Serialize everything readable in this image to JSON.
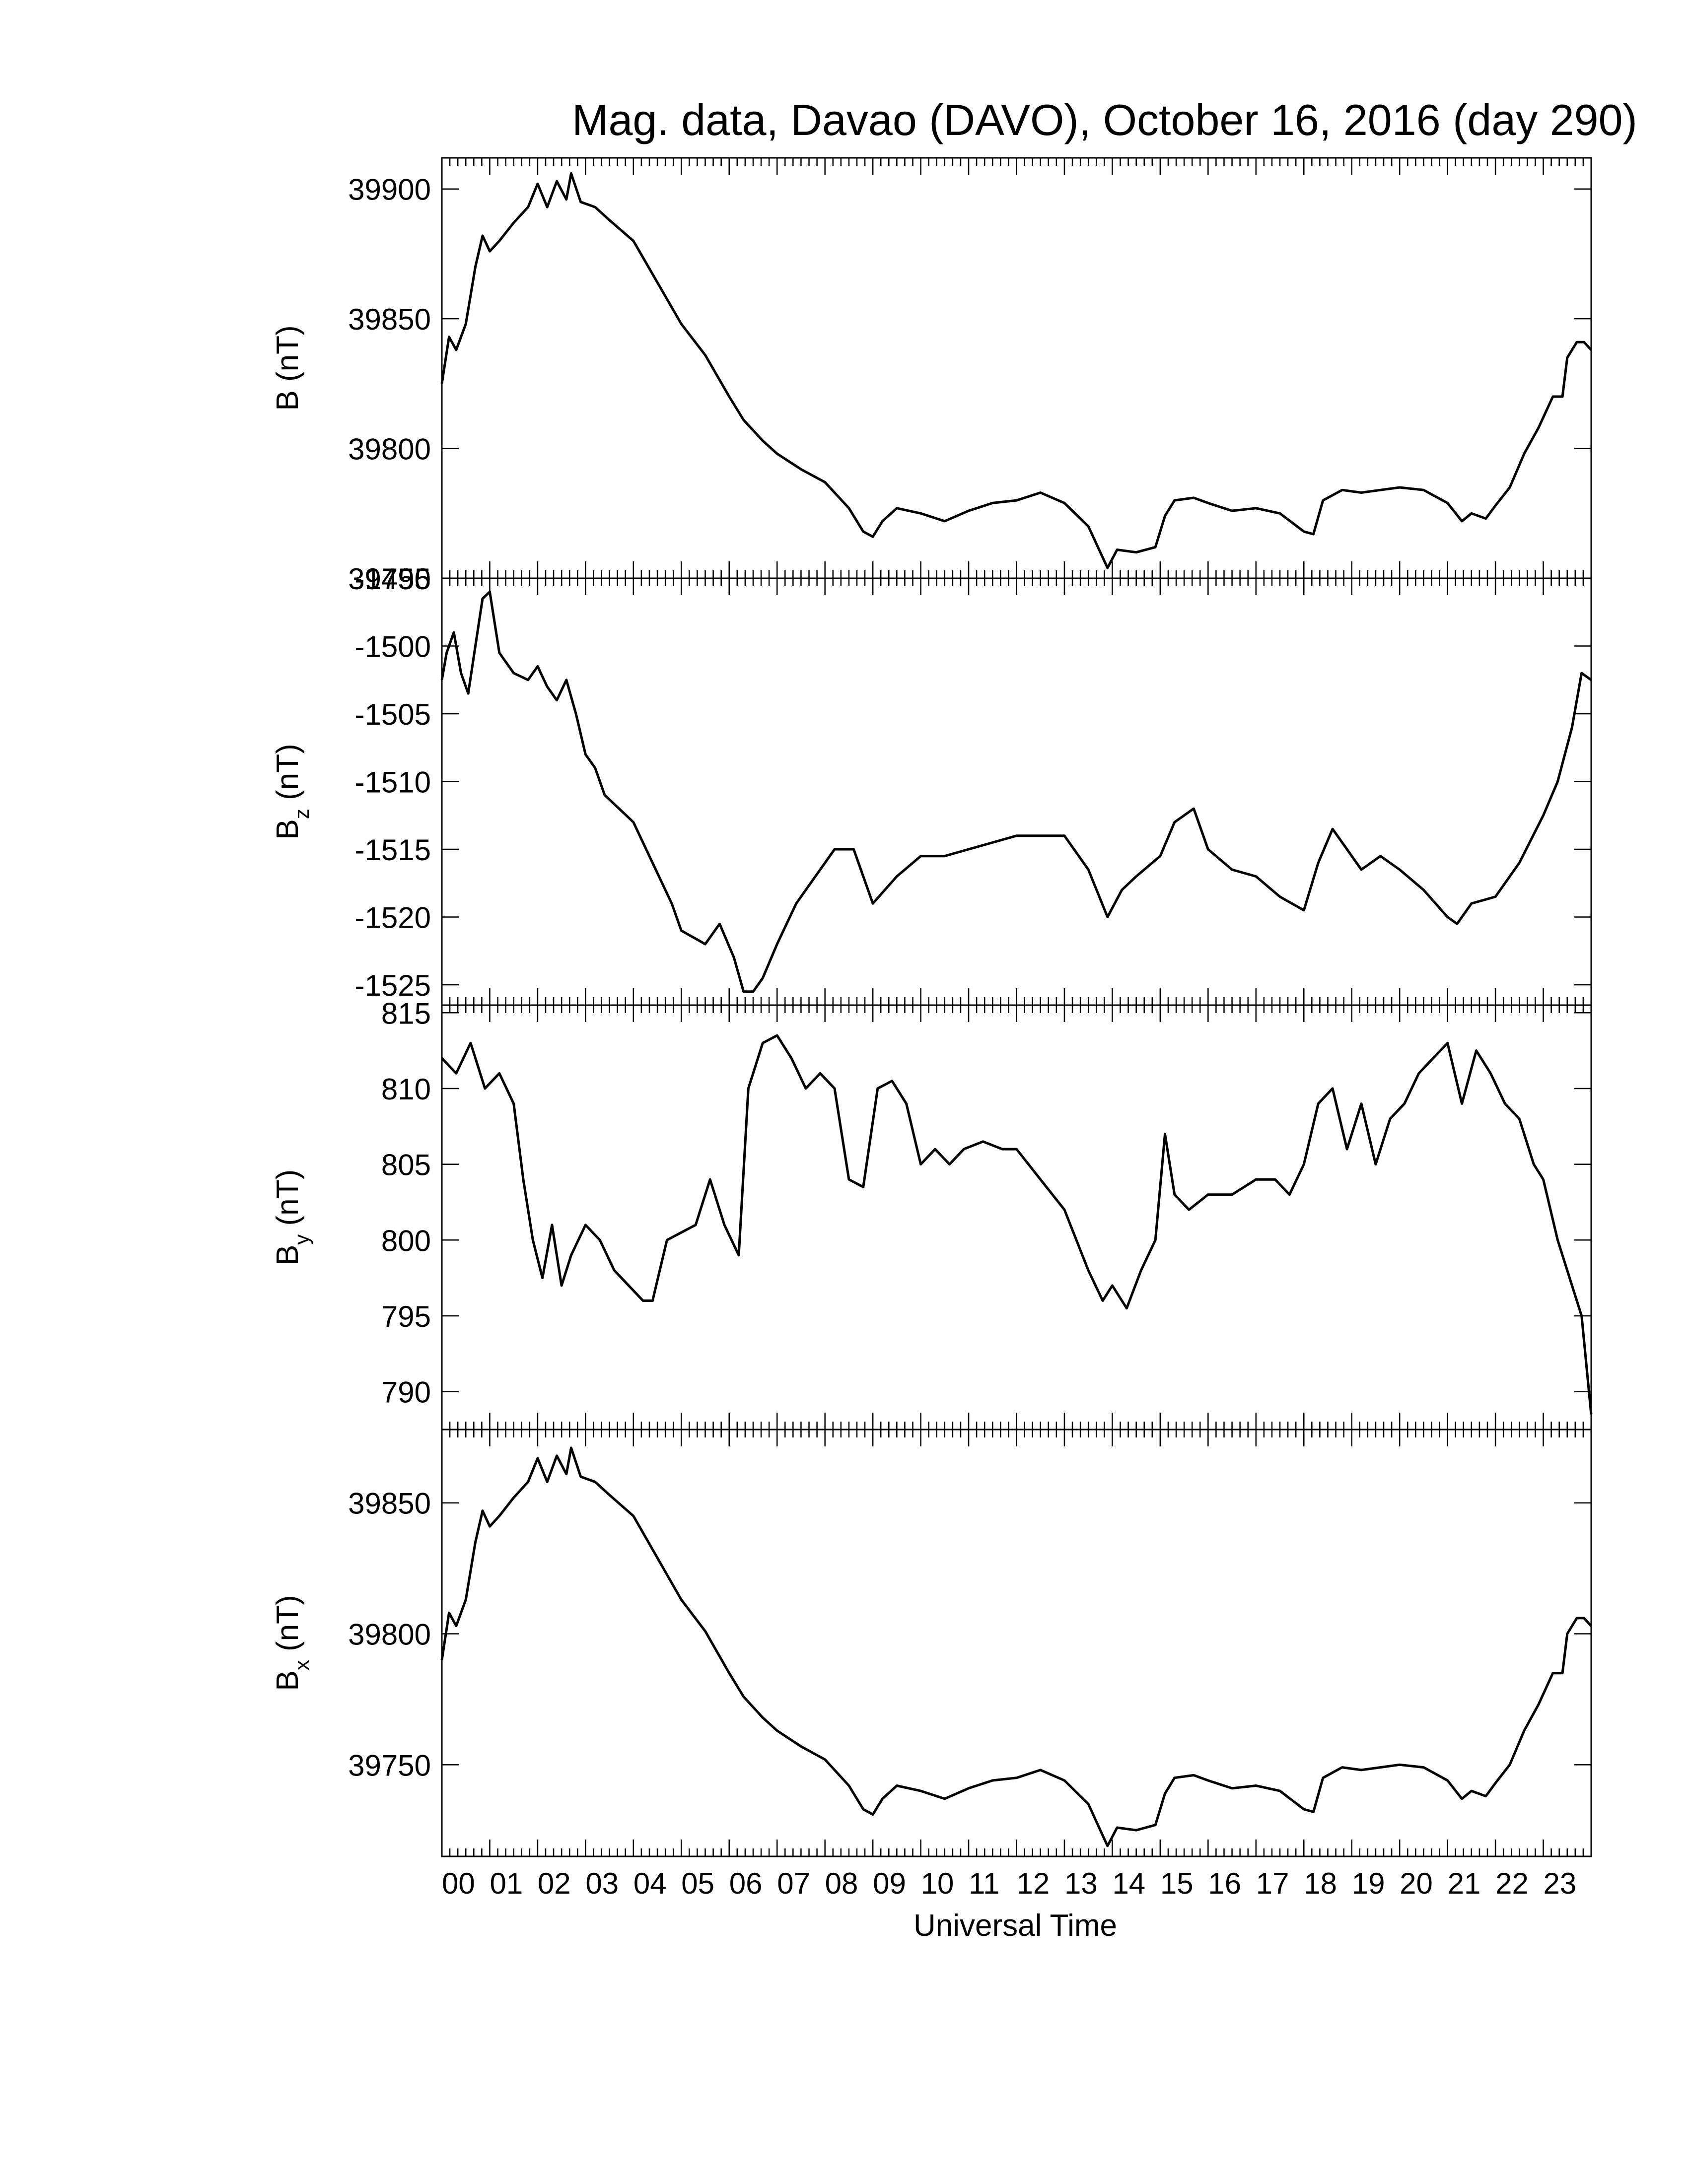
{
  "chart_data": {
    "type": "line",
    "title": "Mag. data, Davao (DAVO), October 16, 2016 (day 290)",
    "xlabel": "Universal Time",
    "x_ticks": [
      "00",
      "01",
      "02",
      "03",
      "04",
      "05",
      "06",
      "07",
      "08",
      "09",
      "10",
      "11",
      "12",
      "13",
      "14",
      "15",
      "16",
      "17",
      "18",
      "19",
      "20",
      "21",
      "22",
      "23"
    ],
    "xlim": [
      0,
      24
    ],
    "grid": false,
    "line_color": "#000000",
    "panels": [
      {
        "ylabel": "B (nT)",
        "ylabel_main": "B",
        "ylabel_sub": "",
        "ylabel_unit": " (nT)",
        "ylim": [
          39750,
          39912
        ],
        "y_ticks": [
          39750,
          39800,
          39850,
          39900
        ],
        "y_tick_labels": [
          "39750",
          "39800",
          "39850",
          "39900"
        ],
        "x": [
          0,
          0.15,
          0.3,
          0.5,
          0.7,
          0.85,
          1.0,
          1.2,
          1.5,
          1.8,
          2.0,
          2.2,
          2.4,
          2.6,
          2.7,
          2.9,
          3.2,
          3.5,
          4.0,
          4.5,
          5.0,
          5.5,
          6.0,
          6.3,
          6.4,
          6.7,
          7.0,
          7.5,
          8.0,
          8.5,
          8.8,
          9.0,
          9.2,
          9.5,
          10.0,
          10.5,
          11.0,
          11.5,
          12.0,
          12.5,
          13.0,
          13.5,
          13.8,
          13.9,
          14.1,
          14.5,
          14.9,
          15.1,
          15.3,
          15.7,
          16.0,
          16.5,
          17.0,
          17.5,
          18.0,
          18.2,
          18.4,
          18.8,
          19.2,
          19.6,
          20.0,
          20.5,
          21.0,
          21.3,
          21.5,
          21.8,
          22.0,
          22.3,
          22.6,
          22.9,
          23.2,
          23.4,
          23.5,
          23.7,
          23.85,
          24.0
        ],
        "values": [
          39825,
          39843,
          39838,
          39848,
          39870,
          39882,
          39876,
          39880,
          39887,
          39893,
          39902,
          39893,
          39903,
          39896,
          39906,
          39895,
          39893,
          39888,
          39880,
          39864,
          39848,
          39836,
          39820,
          39811,
          39809,
          39803,
          39798,
          39792,
          39787,
          39777,
          39768,
          39766,
          39772,
          39777,
          39775,
          39772,
          39776,
          39779,
          39780,
          39783,
          39779,
          39770,
          39758,
          39754,
          39761,
          39760,
          39762,
          39774,
          39780,
          39781,
          39779,
          39776,
          39777,
          39775,
          39768,
          39767,
          39780,
          39784,
          39783,
          39784,
          39785,
          39784,
          39779,
          39772,
          39775,
          39773,
          39778,
          39785,
          39798,
          39808,
          39820,
          39820,
          39835,
          39841,
          39841,
          39838
        ]
      },
      {
        "ylabel": "Bz (nT)",
        "ylabel_main": "B",
        "ylabel_sub": "z",
        "ylabel_unit": " (nT)",
        "ylim": [
          -1526.5,
          -1495
        ],
        "y_ticks": [
          -1525,
          -1520,
          -1515,
          -1510,
          -1505,
          -1500,
          -1495
        ],
        "y_tick_labels": [
          "-1525",
          "-1520",
          "-1515",
          "-1510",
          "-1505",
          "-1500",
          "-1495"
        ],
        "x": [
          0,
          0.1,
          0.25,
          0.4,
          0.55,
          0.7,
          0.85,
          1.0,
          1.2,
          1.5,
          1.8,
          2.0,
          2.2,
          2.4,
          2.6,
          2.8,
          3.0,
          3.2,
          3.4,
          3.7,
          4.0,
          4.4,
          4.8,
          5.0,
          5.5,
          5.8,
          6.1,
          6.3,
          6.5,
          6.7,
          7.0,
          7.4,
          7.8,
          8.2,
          8.6,
          9.0,
          9.5,
          10.0,
          10.5,
          11.0,
          11.5,
          12.0,
          12.5,
          13.0,
          13.5,
          13.9,
          14.2,
          14.5,
          15.0,
          15.3,
          15.7,
          16.0,
          16.5,
          17.0,
          17.5,
          18.0,
          18.3,
          18.6,
          18.9,
          19.2,
          19.6,
          20.0,
          20.5,
          21.0,
          21.2,
          21.5,
          22.0,
          22.5,
          23.0,
          23.3,
          23.6,
          23.8,
          24.0
        ],
        "values": [
          -1502.5,
          -1500.5,
          -1499,
          -1502,
          -1503.5,
          -1500,
          -1496.5,
          -1496,
          -1500.5,
          -1502,
          -1502.5,
          -1501.5,
          -1503,
          -1504,
          -1502.5,
          -1505,
          -1508,
          -1509,
          -1511,
          -1512,
          -1513,
          -1516,
          -1519,
          -1521,
          -1522,
          -1520.5,
          -1523,
          -1525.5,
          -1525.5,
          -1524.5,
          -1522,
          -1519,
          -1517,
          -1515,
          -1515,
          -1519,
          -1517,
          -1515.5,
          -1515.5,
          -1515,
          -1514.5,
          -1514,
          -1514,
          -1514,
          -1516.5,
          -1520,
          -1518,
          -1517,
          -1515.5,
          -1513,
          -1512,
          -1515,
          -1516.5,
          -1517,
          -1518.5,
          -1519.5,
          -1516,
          -1513.5,
          -1515,
          -1516.5,
          -1515.5,
          -1516.5,
          -1518,
          -1520,
          -1520.5,
          -1519,
          -1518.5,
          -1516,
          -1512.5,
          -1510,
          -1506,
          -1502,
          -1502.5
        ]
      },
      {
        "ylabel": "By (nT)",
        "ylabel_main": "B",
        "ylabel_sub": "y",
        "ylabel_unit": " (nT)",
        "ylim": [
          787.5,
          815.5
        ],
        "y_ticks": [
          790,
          795,
          800,
          805,
          810,
          815
        ],
        "y_tick_labels": [
          "790",
          "795",
          "800",
          "805",
          "810",
          "815"
        ],
        "x": [
          0,
          0.3,
          0.6,
          0.9,
          1.2,
          1.5,
          1.7,
          1.9,
          2.1,
          2.3,
          2.5,
          2.7,
          3.0,
          3.3,
          3.6,
          3.9,
          4.2,
          4.4,
          4.7,
          5.0,
          5.3,
          5.6,
          5.9,
          6.2,
          6.4,
          6.5,
          6.7,
          7.0,
          7.3,
          7.6,
          7.9,
          8.2,
          8.5,
          8.8,
          9.1,
          9.4,
          9.7,
          10.0,
          10.3,
          10.6,
          10.9,
          11.3,
          11.7,
          12.0,
          12.5,
          13.0,
          13.5,
          13.8,
          14.0,
          14.3,
          14.6,
          14.9,
          15.1,
          15.3,
          15.6,
          16.0,
          16.5,
          17.0,
          17.4,
          17.7,
          18.0,
          18.3,
          18.6,
          18.9,
          19.2,
          19.5,
          19.8,
          20.1,
          20.4,
          20.7,
          21.0,
          21.3,
          21.6,
          21.9,
          22.2,
          22.5,
          22.8,
          23.0,
          23.3,
          23.6,
          23.8,
          24.0
        ],
        "values": [
          812,
          811,
          813,
          810,
          811,
          809,
          804,
          800,
          797.5,
          801,
          797,
          799,
          801,
          800,
          798,
          797,
          796,
          796,
          800,
          800.5,
          801,
          804,
          801,
          799,
          810,
          811,
          813,
          813.5,
          812,
          810,
          811,
          810,
          804,
          803.5,
          810,
          810.5,
          809,
          805,
          806,
          805,
          806,
          806.5,
          806,
          806,
          804,
          802,
          798,
          796,
          797,
          795.5,
          798,
          800,
          807,
          803,
          802,
          803,
          803,
          804,
          804,
          803,
          805,
          809,
          810,
          806,
          809,
          805,
          808,
          809,
          811,
          812,
          813,
          809,
          812.5,
          811,
          809,
          808,
          805,
          804,
          800,
          797,
          795,
          788.5
        ]
      },
      {
        "ylabel": "Bx (nT)",
        "ylabel_main": "B",
        "ylabel_sub": "x",
        "ylabel_unit": " (nT)",
        "ylim": [
          39715,
          39878
        ],
        "y_ticks": [
          39750,
          39800,
          39850
        ],
        "y_tick_labels": [
          "39750",
          "39800",
          "39850"
        ],
        "x": [
          0,
          0.15,
          0.3,
          0.5,
          0.7,
          0.85,
          1.0,
          1.2,
          1.5,
          1.8,
          2.0,
          2.2,
          2.4,
          2.6,
          2.7,
          2.9,
          3.2,
          3.5,
          4.0,
          4.5,
          5.0,
          5.5,
          6.0,
          6.3,
          6.4,
          6.7,
          7.0,
          7.5,
          8.0,
          8.5,
          8.8,
          9.0,
          9.2,
          9.5,
          10.0,
          10.5,
          11.0,
          11.5,
          12.0,
          12.5,
          13.0,
          13.5,
          13.8,
          13.9,
          14.1,
          14.5,
          14.9,
          15.1,
          15.3,
          15.7,
          16.0,
          16.5,
          17.0,
          17.5,
          18.0,
          18.2,
          18.4,
          18.8,
          19.2,
          19.6,
          20.0,
          20.5,
          21.0,
          21.3,
          21.5,
          21.8,
          22.0,
          22.3,
          22.6,
          22.9,
          23.2,
          23.4,
          23.5,
          23.7,
          23.85,
          24.0
        ],
        "values": [
          39790,
          39808,
          39803,
          39813,
          39835,
          39847,
          39841,
          39845,
          39852,
          39858,
          39867,
          39858,
          39868,
          39861,
          39871,
          39860,
          39858,
          39853,
          39845,
          39829,
          39813,
          39801,
          39785,
          39776,
          39774,
          39768,
          39763,
          39757,
          39752,
          39742,
          39733,
          39731,
          39737,
          39742,
          39740,
          39737,
          39741,
          39744,
          39745,
          39748,
          39744,
          39735,
          39723,
          39719,
          39726,
          39725,
          39727,
          39739,
          39745,
          39746,
          39744,
          39741,
          39742,
          39740,
          39733,
          39732,
          39745,
          39749,
          39748,
          39749,
          39750,
          39749,
          39744,
          39737,
          39740,
          39738,
          39743,
          39750,
          39763,
          39773,
          39785,
          39785,
          39800,
          39806,
          39806,
          39803
        ]
      }
    ]
  }
}
